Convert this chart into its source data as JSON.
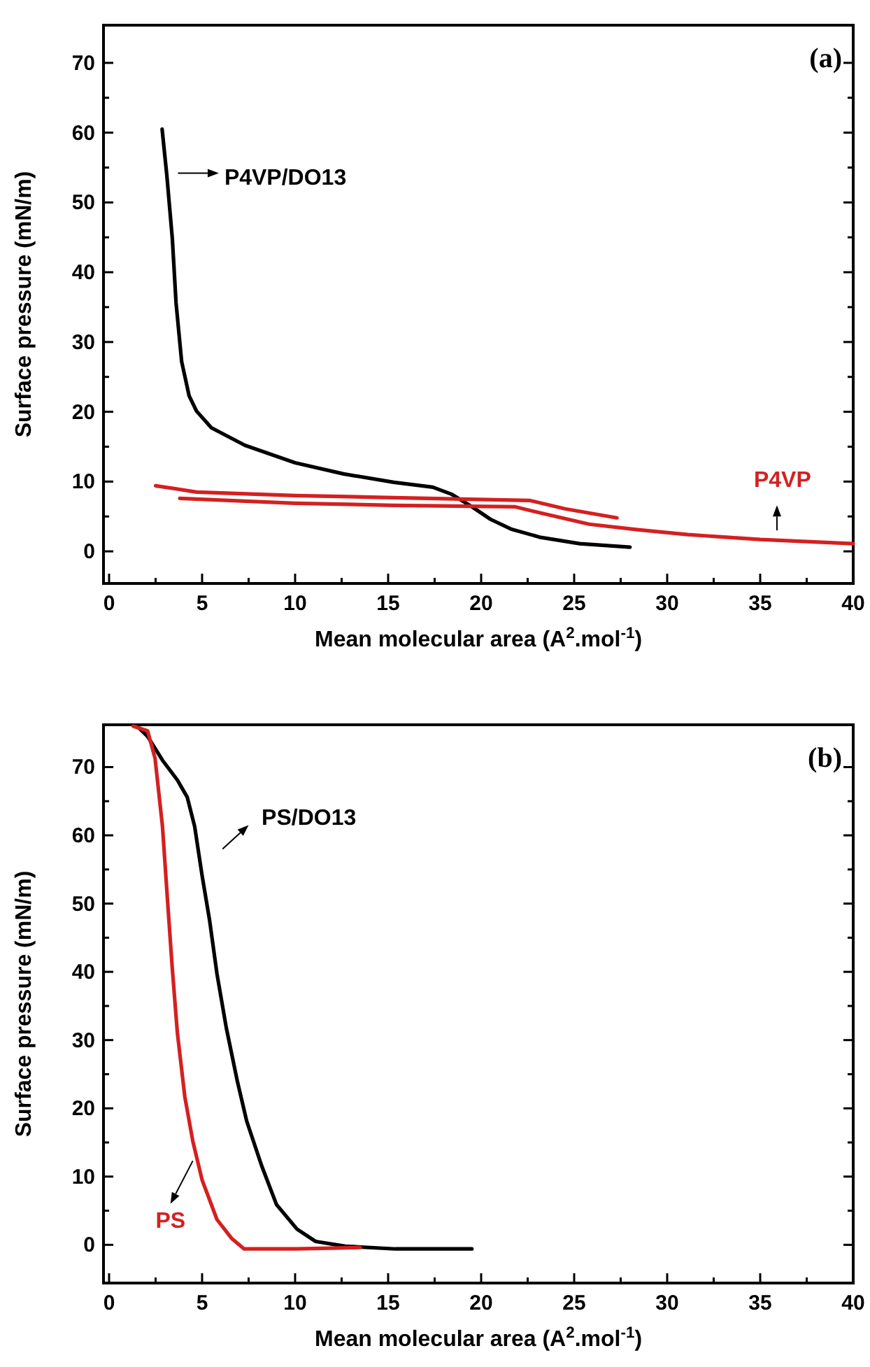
{
  "chart_data": [
    {
      "type": "line",
      "title": "(a)",
      "xlabel": "Mean molecular area (A$^{2}$.mol$^{-1}$)",
      "ylabel": "Surface pressure (mN/m)",
      "xlim": [
        -0.3,
        40
      ],
      "ylim": [
        -4.6,
        75.4
      ],
      "xticks": [
        0,
        {
          "value": 2.5,
          "label": null
        },
        5,
        {
          "value": 7.5,
          "label": null
        },
        10,
        {
          "value": 12.5,
          "label": null
        },
        15,
        {
          "value": 17.5,
          "label": null
        },
        20,
        {
          "value": 22.5,
          "label": null
        },
        25,
        {
          "value": 27.5,
          "label": null
        },
        30,
        {
          "value": 32.5,
          "label": null
        },
        35,
        {
          "value": 37.5,
          "label": null
        },
        40
      ],
      "yticks": [
        0,
        {
          "value": 5,
          "label": null
        },
        10,
        {
          "value": 15,
          "label": null
        },
        20,
        {
          "value": 25,
          "label": null
        },
        30,
        {
          "value": 35,
          "label": null
        },
        40,
        {
          "value": 45,
          "label": null
        },
        50,
        {
          "value": 55,
          "label": null
        },
        60,
        {
          "value": 65,
          "label": null
        },
        70
      ],
      "series": [
        {
          "name": "P4VP/DO13",
          "color": "#000000",
          "x": [
            2.85,
            3.1,
            3.4,
            3.6,
            3.9,
            4.3,
            4.7,
            5.5,
            7.3,
            10,
            12.6,
            15.3,
            17.4,
            18.4,
            19.5,
            20.5,
            21.6,
            23.2,
            25.3,
            28.0
          ],
          "values": [
            60.5,
            54,
            44.8,
            35.6,
            27.2,
            22.3,
            20.1,
            17.7,
            15.2,
            12.7,
            11.1,
            9.9,
            9.2,
            8.2,
            6.4,
            4.6,
            3.2,
            2.0,
            1.1,
            0.6
          ]
        },
        {
          "name": "P4VP",
          "color": "#d42020",
          "x": [
            27.3,
            24.5,
            22.6,
            15.3,
            10,
            4.7,
            2.5,
            3.2,
            3.8,
            10,
            15.3,
            21.8,
            23.2,
            25.8,
            28.4,
            31.1,
            35,
            40
          ],
          "values": [
            4.8,
            6.1,
            7.3,
            7.7,
            8.0,
            8.5,
            9.4,
            null,
            7.6,
            6.9,
            6.6,
            6.4,
            5.5,
            3.9,
            3.1,
            2.4,
            1.7,
            1.1
          ]
        }
      ]
    },
    {
      "type": "line",
      "title": "(b)",
      "xlabel": "Mean molecular area (A$^{2}$.mol$^{-1}$)",
      "ylabel": "Surface pressure (mN/m)",
      "xlim": [
        -0.3,
        40
      ],
      "ylim": [
        -5.6,
        76.2
      ],
      "xticks": [
        0,
        {
          "value": 2.5,
          "label": null
        },
        5,
        {
          "value": 7.5,
          "label": null
        },
        10,
        {
          "value": 12.5,
          "label": null
        },
        15,
        {
          "value": 17.5,
          "label": null
        },
        20,
        {
          "value": 22.5,
          "label": null
        },
        25,
        {
          "value": 27.5,
          "label": null
        },
        30,
        {
          "value": 32.5,
          "label": null
        },
        35,
        {
          "value": 37.5,
          "label": null
        },
        40
      ],
      "yticks": [
        0,
        {
          "value": 5,
          "label": null
        },
        10,
        {
          "value": 15,
          "label": null
        },
        20,
        {
          "value": 25,
          "label": null
        },
        30,
        {
          "value": 35,
          "label": null
        },
        40,
        {
          "value": 45,
          "label": null
        },
        50,
        {
          "value": 55,
          "label": null
        },
        60,
        {
          "value": 65,
          "label": null
        },
        70
      ],
      "series": [
        {
          "name": "PS/DO13",
          "color": "#000000",
          "x": [
            1.5,
            2.07,
            2.87,
            3.67,
            4.2,
            4.6,
            5.0,
            5.4,
            5.8,
            6.3,
            6.9,
            7.4,
            8.2,
            9.0,
            10.1,
            11.1,
            12.7,
            15.4,
            19.5
          ],
          "values": [
            76,
            74.5,
            71,
            68.1,
            65.6,
            61.3,
            54.1,
            47.6,
            39.7,
            31.8,
            23.9,
            18.1,
            11.6,
            5.9,
            2.3,
            0.5,
            -0.2,
            -0.6,
            -0.6
          ]
        },
        {
          "name": "PS",
          "color": "#d42020",
          "x": [
            1.3,
            2.07,
            2.47,
            2.87,
            3.14,
            3.4,
            3.67,
            4.07,
            4.5,
            5.0,
            5.8,
            6.6,
            7.26,
            10.05,
            13.5
          ],
          "values": [
            76,
            75.3,
            71.3,
            61.3,
            50.5,
            40.4,
            31.1,
            21.7,
            15.2,
            9.5,
            3.7,
            0.9,
            -0.6,
            -0.6,
            -0.4
          ]
        }
      ]
    }
  ]
}
